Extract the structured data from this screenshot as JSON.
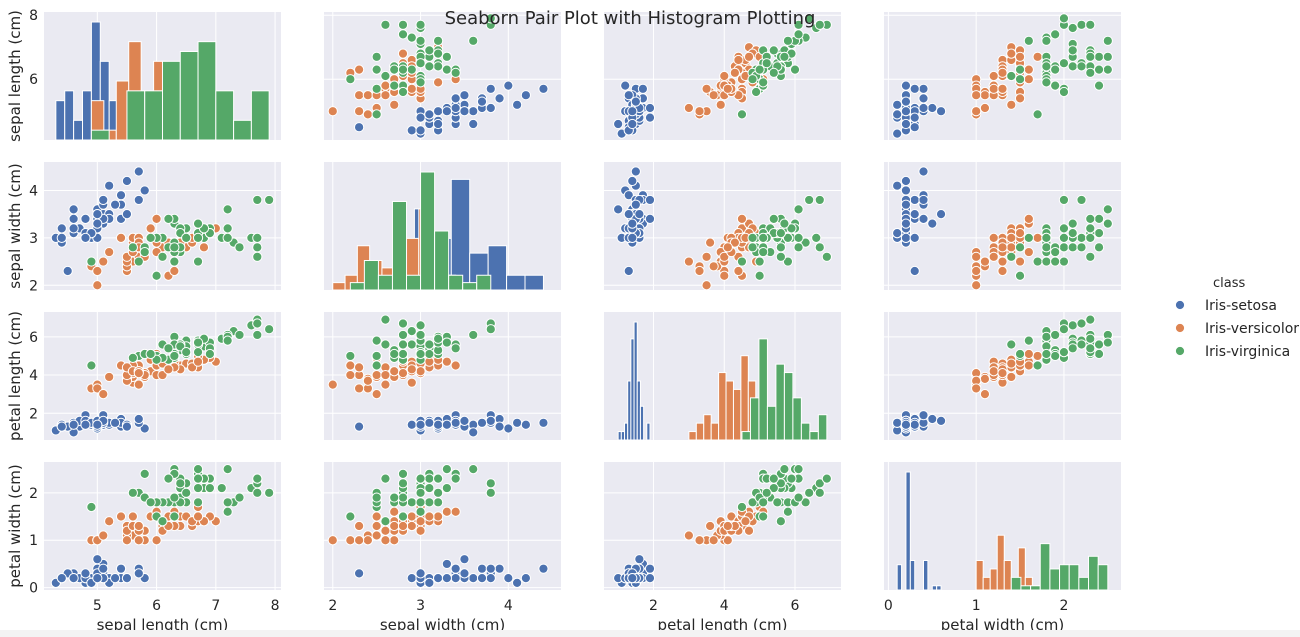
{
  "chart_data": {
    "type": "scatter",
    "kind": "pairplot",
    "title": "Seaborn Pair Plot with Histogram Plotting",
    "variables": [
      {
        "key": "sl",
        "label": "sepal length (cm)",
        "range": [
          4.1,
          8.1
        ],
        "ticks": [
          5,
          6,
          7,
          8
        ],
        "yticks": [
          6,
          8
        ]
      },
      {
        "key": "sw",
        "label": "sepal width (cm)",
        "range": [
          1.9,
          4.6
        ],
        "ticks": [
          2,
          3,
          4
        ],
        "yticks": [
          2,
          3,
          4
        ]
      },
      {
        "key": "pl",
        "label": "petal length (cm)",
        "range": [
          0.6,
          7.3
        ],
        "ticks": [
          2,
          4,
          6
        ],
        "yticks": [
          2,
          4,
          6
        ]
      },
      {
        "key": "pw",
        "label": "petal width (cm)",
        "range": [
          -0.05,
          2.65
        ],
        "ticks": [
          0,
          1,
          2
        ],
        "yticks": [
          0,
          1,
          2
        ]
      }
    ],
    "legend": {
      "title": "class",
      "placement": "right"
    },
    "series": [
      {
        "name": "Iris-setosa",
        "color": "#4c72b0",
        "points": [
          [
            5.1,
            3.5,
            1.4,
            0.2
          ],
          [
            4.9,
            3.0,
            1.4,
            0.2
          ],
          [
            4.7,
            3.2,
            1.3,
            0.2
          ],
          [
            4.6,
            3.1,
            1.5,
            0.2
          ],
          [
            5.0,
            3.6,
            1.4,
            0.2
          ],
          [
            5.4,
            3.9,
            1.7,
            0.4
          ],
          [
            4.6,
            3.4,
            1.4,
            0.3
          ],
          [
            5.0,
            3.4,
            1.5,
            0.2
          ],
          [
            4.4,
            2.9,
            1.4,
            0.2
          ],
          [
            4.9,
            3.1,
            1.5,
            0.1
          ],
          [
            5.4,
            3.7,
            1.5,
            0.2
          ],
          [
            4.8,
            3.4,
            1.6,
            0.2
          ],
          [
            4.8,
            3.0,
            1.4,
            0.1
          ],
          [
            4.3,
            3.0,
            1.1,
            0.1
          ],
          [
            5.8,
            4.0,
            1.2,
            0.2
          ],
          [
            5.7,
            4.4,
            1.5,
            0.4
          ],
          [
            5.4,
            3.9,
            1.3,
            0.4
          ],
          [
            5.1,
            3.5,
            1.4,
            0.3
          ],
          [
            5.7,
            3.8,
            1.7,
            0.3
          ],
          [
            5.1,
            3.8,
            1.5,
            0.3
          ],
          [
            5.4,
            3.4,
            1.7,
            0.2
          ],
          [
            5.1,
            3.7,
            1.5,
            0.4
          ],
          [
            4.6,
            3.6,
            1.0,
            0.2
          ],
          [
            5.1,
            3.3,
            1.7,
            0.5
          ],
          [
            4.8,
            3.4,
            1.9,
            0.2
          ],
          [
            5.0,
            3.0,
            1.6,
            0.2
          ],
          [
            5.0,
            3.4,
            1.6,
            0.4
          ],
          [
            5.2,
            3.5,
            1.5,
            0.2
          ],
          [
            5.2,
            3.4,
            1.4,
            0.2
          ],
          [
            4.7,
            3.2,
            1.6,
            0.2
          ],
          [
            4.8,
            3.1,
            1.6,
            0.2
          ],
          [
            5.4,
            3.4,
            1.5,
            0.4
          ],
          [
            5.2,
            4.1,
            1.5,
            0.1
          ],
          [
            5.5,
            4.2,
            1.4,
            0.2
          ],
          [
            4.9,
            3.1,
            1.5,
            0.1
          ],
          [
            5.0,
            3.2,
            1.2,
            0.2
          ],
          [
            5.5,
            3.5,
            1.3,
            0.2
          ],
          [
            4.9,
            3.1,
            1.5,
            0.1
          ],
          [
            4.4,
            3.0,
            1.3,
            0.2
          ],
          [
            5.1,
            3.4,
            1.5,
            0.2
          ],
          [
            5.0,
            3.5,
            1.3,
            0.3
          ],
          [
            4.5,
            2.3,
            1.3,
            0.3
          ],
          [
            4.4,
            3.2,
            1.3,
            0.2
          ],
          [
            5.0,
            3.5,
            1.6,
            0.6
          ],
          [
            5.1,
            3.8,
            1.9,
            0.4
          ],
          [
            4.8,
            3.0,
            1.4,
            0.3
          ],
          [
            5.1,
            3.8,
            1.6,
            0.2
          ],
          [
            4.6,
            3.2,
            1.4,
            0.2
          ],
          [
            5.3,
            3.7,
            1.5,
            0.2
          ],
          [
            5.0,
            3.3,
            1.4,
            0.2
          ]
        ]
      },
      {
        "name": "Iris-versicolor",
        "color": "#dd8452",
        "points": [
          [
            7.0,
            3.2,
            4.7,
            1.4
          ],
          [
            6.4,
            3.2,
            4.5,
            1.5
          ],
          [
            6.9,
            3.1,
            4.9,
            1.5
          ],
          [
            5.5,
            2.3,
            4.0,
            1.3
          ],
          [
            6.5,
            2.8,
            4.6,
            1.5
          ],
          [
            5.7,
            2.8,
            4.5,
            1.3
          ],
          [
            6.3,
            3.3,
            4.7,
            1.6
          ],
          [
            4.9,
            2.4,
            3.3,
            1.0
          ],
          [
            6.6,
            2.9,
            4.6,
            1.3
          ],
          [
            5.2,
            2.7,
            3.9,
            1.4
          ],
          [
            5.0,
            2.0,
            3.5,
            1.0
          ],
          [
            5.9,
            3.0,
            4.2,
            1.5
          ],
          [
            6.0,
            2.2,
            4.0,
            1.0
          ],
          [
            6.1,
            2.9,
            4.7,
            1.4
          ],
          [
            5.6,
            2.9,
            3.6,
            1.3
          ],
          [
            6.7,
            3.1,
            4.4,
            1.4
          ],
          [
            5.6,
            3.0,
            4.5,
            1.5
          ],
          [
            5.8,
            2.7,
            4.1,
            1.0
          ],
          [
            6.2,
            2.2,
            4.5,
            1.5
          ],
          [
            5.6,
            2.5,
            3.9,
            1.1
          ],
          [
            5.9,
            3.2,
            4.8,
            1.8
          ],
          [
            6.1,
            2.8,
            4.0,
            1.3
          ],
          [
            6.3,
            2.5,
            4.9,
            1.5
          ],
          [
            6.1,
            2.8,
            4.7,
            1.2
          ],
          [
            6.4,
            2.9,
            4.3,
            1.3
          ],
          [
            6.6,
            3.0,
            4.4,
            1.4
          ],
          [
            6.8,
            2.8,
            4.8,
            1.4
          ],
          [
            6.7,
            3.0,
            5.0,
            1.7
          ],
          [
            6.0,
            2.9,
            4.5,
            1.5
          ],
          [
            5.7,
            2.6,
            3.5,
            1.0
          ],
          [
            5.5,
            2.4,
            3.8,
            1.1
          ],
          [
            5.5,
            2.4,
            3.7,
            1.0
          ],
          [
            5.8,
            2.7,
            3.9,
            1.2
          ],
          [
            6.0,
            2.7,
            5.1,
            1.6
          ],
          [
            5.4,
            3.0,
            4.5,
            1.5
          ],
          [
            6.0,
            3.4,
            4.5,
            1.6
          ],
          [
            6.7,
            3.1,
            4.7,
            1.5
          ],
          [
            6.3,
            2.3,
            4.4,
            1.3
          ],
          [
            5.6,
            3.0,
            4.1,
            1.3
          ],
          [
            5.5,
            2.5,
            4.0,
            1.3
          ],
          [
            5.5,
            2.6,
            4.4,
            1.2
          ],
          [
            6.1,
            3.0,
            4.6,
            1.4
          ],
          [
            5.8,
            2.6,
            4.0,
            1.2
          ],
          [
            5.0,
            2.3,
            3.3,
            1.0
          ],
          [
            5.6,
            2.7,
            4.2,
            1.3
          ],
          [
            5.7,
            3.0,
            4.2,
            1.2
          ],
          [
            5.7,
            2.9,
            4.2,
            1.3
          ],
          [
            6.2,
            2.9,
            4.3,
            1.3
          ],
          [
            5.1,
            2.5,
            3.0,
            1.1
          ],
          [
            5.7,
            2.8,
            4.1,
            1.3
          ]
        ]
      },
      {
        "name": "Iris-virginica",
        "color": "#55a868",
        "points": [
          [
            6.3,
            3.3,
            6.0,
            2.5
          ],
          [
            5.8,
            2.7,
            5.1,
            1.9
          ],
          [
            7.1,
            3.0,
            5.9,
            2.1
          ],
          [
            6.3,
            2.9,
            5.6,
            1.8
          ],
          [
            6.5,
            3.0,
            5.8,
            2.2
          ],
          [
            7.6,
            3.0,
            6.6,
            2.1
          ],
          [
            4.9,
            2.5,
            4.5,
            1.7
          ],
          [
            7.3,
            2.9,
            6.3,
            1.8
          ],
          [
            6.7,
            2.5,
            5.8,
            1.8
          ],
          [
            7.2,
            3.6,
            6.1,
            2.5
          ],
          [
            6.5,
            3.2,
            5.1,
            2.0
          ],
          [
            6.4,
            2.7,
            5.3,
            1.9
          ],
          [
            6.8,
            3.0,
            5.5,
            2.1
          ],
          [
            5.7,
            2.5,
            5.0,
            2.0
          ],
          [
            5.8,
            2.8,
            5.1,
            2.4
          ],
          [
            6.4,
            3.2,
            5.3,
            2.3
          ],
          [
            6.5,
            3.0,
            5.5,
            1.8
          ],
          [
            7.7,
            3.8,
            6.7,
            2.2
          ],
          [
            7.7,
            2.6,
            6.9,
            2.3
          ],
          [
            6.0,
            2.2,
            5.0,
            1.5
          ],
          [
            6.9,
            3.2,
            5.7,
            2.3
          ],
          [
            5.6,
            2.8,
            4.9,
            2.0
          ],
          [
            7.7,
            2.8,
            6.7,
            2.0
          ],
          [
            6.3,
            2.7,
            4.9,
            1.8
          ],
          [
            6.7,
            3.3,
            5.7,
            2.1
          ],
          [
            7.2,
            3.2,
            6.0,
            1.8
          ],
          [
            6.2,
            2.8,
            4.8,
            1.8
          ],
          [
            6.1,
            3.0,
            4.9,
            1.8
          ],
          [
            6.4,
            2.8,
            5.6,
            2.1
          ],
          [
            7.2,
            3.0,
            5.8,
            1.6
          ],
          [
            7.4,
            2.8,
            6.1,
            1.9
          ],
          [
            7.9,
            3.8,
            6.4,
            2.0
          ],
          [
            6.4,
            2.8,
            5.6,
            2.2
          ],
          [
            6.3,
            2.8,
            5.1,
            1.5
          ],
          [
            6.1,
            2.6,
            5.6,
            1.4
          ],
          [
            7.7,
            3.0,
            6.1,
            2.3
          ],
          [
            6.3,
            3.4,
            5.6,
            2.4
          ],
          [
            6.4,
            3.1,
            5.5,
            1.8
          ],
          [
            6.0,
            3.0,
            4.8,
            1.8
          ],
          [
            6.9,
            3.1,
            5.4,
            2.1
          ],
          [
            6.7,
            3.1,
            5.6,
            2.4
          ],
          [
            6.9,
            3.1,
            5.1,
            2.3
          ],
          [
            5.8,
            2.7,
            5.1,
            1.9
          ],
          [
            6.8,
            3.2,
            5.9,
            2.3
          ],
          [
            6.7,
            3.3,
            5.7,
            2.5
          ],
          [
            6.7,
            3.0,
            5.2,
            2.3
          ],
          [
            6.3,
            2.5,
            5.0,
            1.9
          ],
          [
            6.5,
            3.0,
            5.2,
            2.0
          ],
          [
            6.2,
            3.4,
            5.4,
            2.3
          ],
          [
            5.9,
            3.0,
            5.1,
            1.8
          ]
        ]
      }
    ],
    "grid": true,
    "diagonal": "histogram"
  }
}
